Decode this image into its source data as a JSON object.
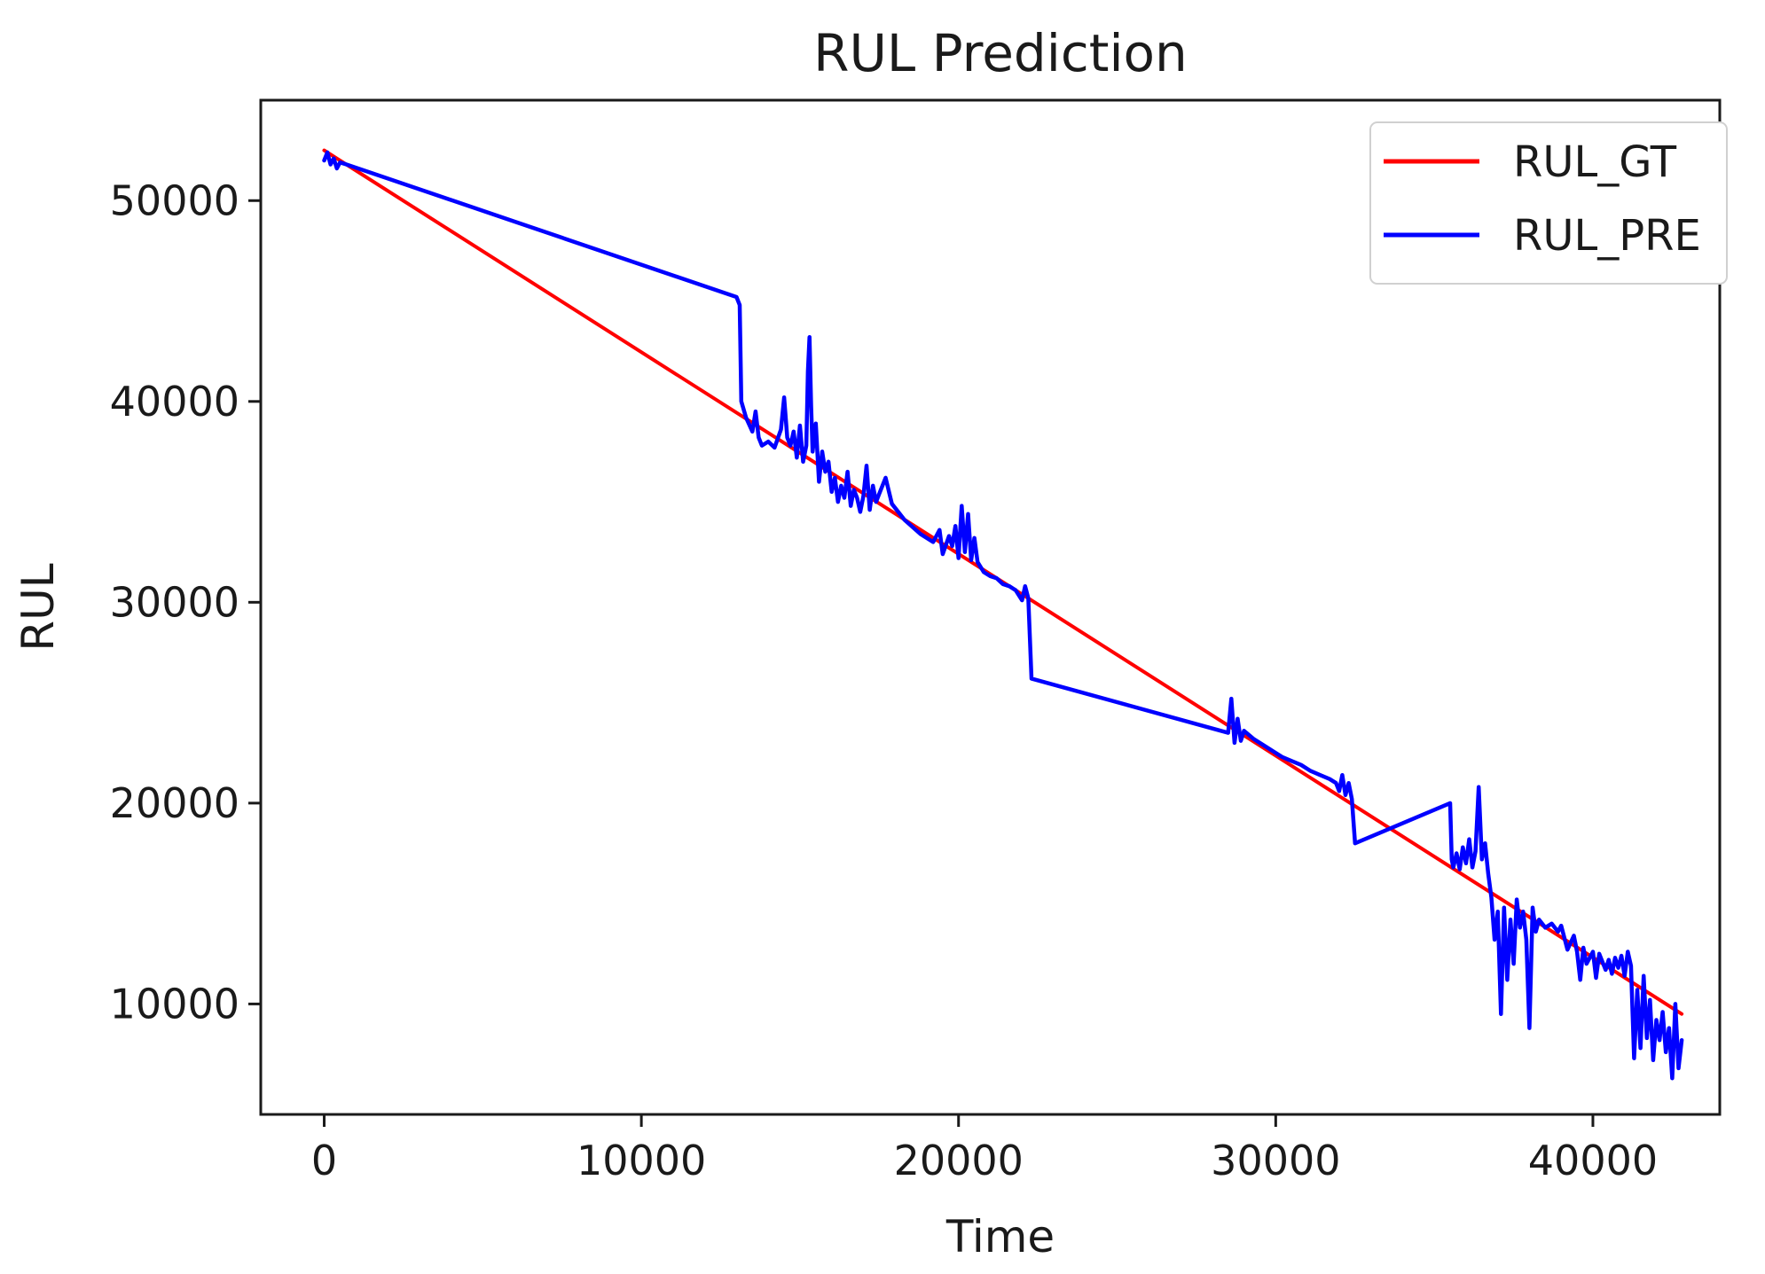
{
  "chart_data": {
    "type": "line",
    "title": "RUL Prediction",
    "xlabel": "Time",
    "ylabel": "RUL",
    "xlim": [
      -2000,
      44000
    ],
    "ylim": [
      4500,
      55000
    ],
    "x_ticks": [
      0,
      10000,
      20000,
      30000,
      40000
    ],
    "y_ticks": [
      10000,
      20000,
      30000,
      40000,
      50000
    ],
    "x_tick_labels": [
      "0",
      "10000",
      "20000",
      "30000",
      "40000"
    ],
    "y_tick_labels": [
      "10000",
      "20000",
      "30000",
      "40000",
      "50000"
    ],
    "grid": false,
    "legend_position": "top-right",
    "colors": {
      "gt": "#ff0000",
      "pre": "#0000ff"
    },
    "series": [
      {
        "name": "RUL_GT",
        "color": "#ff0000",
        "points": [
          [
            0,
            52500
          ],
          [
            42800,
            9500
          ]
        ]
      },
      {
        "name": "RUL_PRE",
        "color": "#0000ff",
        "points": [
          [
            0,
            52000
          ],
          [
            100,
            52400
          ],
          [
            200,
            51800
          ],
          [
            300,
            52100
          ],
          [
            400,
            51600
          ],
          [
            500,
            51900
          ],
          [
            700,
            51800
          ],
          [
            13000,
            45200
          ],
          [
            13100,
            44800
          ],
          [
            13150,
            40000
          ],
          [
            13300,
            39200
          ],
          [
            13500,
            38500
          ],
          [
            13600,
            39500
          ],
          [
            13700,
            38200
          ],
          [
            13800,
            37800
          ],
          [
            14000,
            38000
          ],
          [
            14200,
            37700
          ],
          [
            14400,
            38600
          ],
          [
            14500,
            40200
          ],
          [
            14600,
            38200
          ],
          [
            14700,
            37800
          ],
          [
            14800,
            38500
          ],
          [
            14900,
            37200
          ],
          [
            15000,
            38800
          ],
          [
            15100,
            37000
          ],
          [
            15200,
            37800
          ],
          [
            15250,
            41500
          ],
          [
            15300,
            43200
          ],
          [
            15350,
            39800
          ],
          [
            15400,
            37500
          ],
          [
            15500,
            38900
          ],
          [
            15600,
            36000
          ],
          [
            15700,
            37500
          ],
          [
            15800,
            36500
          ],
          [
            15900,
            37000
          ],
          [
            16000,
            35500
          ],
          [
            16100,
            36200
          ],
          [
            16200,
            35000
          ],
          [
            16300,
            35800
          ],
          [
            16400,
            35200
          ],
          [
            16500,
            36500
          ],
          [
            16600,
            34800
          ],
          [
            16700,
            35600
          ],
          [
            16800,
            35200
          ],
          [
            16900,
            34500
          ],
          [
            17000,
            35300
          ],
          [
            17100,
            36800
          ],
          [
            17200,
            34600
          ],
          [
            17300,
            35800
          ],
          [
            17400,
            35000
          ],
          [
            17500,
            35400
          ],
          [
            17700,
            36200
          ],
          [
            17900,
            34900
          ],
          [
            18300,
            34100
          ],
          [
            18800,
            33400
          ],
          [
            19200,
            33000
          ],
          [
            19400,
            33600
          ],
          [
            19500,
            32400
          ],
          [
            19700,
            33300
          ],
          [
            19800,
            32800
          ],
          [
            19900,
            33800
          ],
          [
            20000,
            32200
          ],
          [
            20100,
            34800
          ],
          [
            20200,
            32500
          ],
          [
            20300,
            34400
          ],
          [
            20400,
            32100
          ],
          [
            20500,
            33200
          ],
          [
            20600,
            32000
          ],
          [
            20800,
            31500
          ],
          [
            21000,
            31300
          ],
          [
            21200,
            31200
          ],
          [
            21400,
            30900
          ],
          [
            21600,
            30800
          ],
          [
            21800,
            30600
          ],
          [
            22000,
            30100
          ],
          [
            22100,
            30800
          ],
          [
            22200,
            30200
          ],
          [
            22300,
            26200
          ],
          [
            28500,
            23500
          ],
          [
            28600,
            25200
          ],
          [
            28700,
            23000
          ],
          [
            28800,
            24200
          ],
          [
            28900,
            23100
          ],
          [
            29000,
            23600
          ],
          [
            29300,
            23200
          ],
          [
            29600,
            22900
          ],
          [
            29900,
            22600
          ],
          [
            30200,
            22300
          ],
          [
            30500,
            22100
          ],
          [
            30800,
            21900
          ],
          [
            31100,
            21600
          ],
          [
            31400,
            21400
          ],
          [
            31700,
            21200
          ],
          [
            31900,
            21000
          ],
          [
            32000,
            20600
          ],
          [
            32100,
            21400
          ],
          [
            32200,
            20400
          ],
          [
            32300,
            21000
          ],
          [
            32400,
            20200
          ],
          [
            32500,
            18000
          ],
          [
            35500,
            20000
          ],
          [
            35550,
            17200
          ],
          [
            35600,
            16800
          ],
          [
            35700,
            17500
          ],
          [
            35800,
            16700
          ],
          [
            35900,
            17800
          ],
          [
            36000,
            17000
          ],
          [
            36100,
            18200
          ],
          [
            36200,
            16800
          ],
          [
            36300,
            17600
          ],
          [
            36400,
            20800
          ],
          [
            36500,
            17200
          ],
          [
            36600,
            18000
          ],
          [
            36700,
            16500
          ],
          [
            36800,
            15300
          ],
          [
            36900,
            13200
          ],
          [
            37000,
            14600
          ],
          [
            37100,
            9500
          ],
          [
            37200,
            14800
          ],
          [
            37300,
            11200
          ],
          [
            37400,
            14200
          ],
          [
            37500,
            12000
          ],
          [
            37600,
            15200
          ],
          [
            37700,
            13800
          ],
          [
            37800,
            14600
          ],
          [
            37900,
            13200
          ],
          [
            38000,
            8800
          ],
          [
            38100,
            14800
          ],
          [
            38200,
            13600
          ],
          [
            38300,
            14200
          ],
          [
            38500,
            13800
          ],
          [
            38700,
            14000
          ],
          [
            38900,
            13600
          ],
          [
            39000,
            13900
          ],
          [
            39200,
            12700
          ],
          [
            39400,
            13400
          ],
          [
            39500,
            12600
          ],
          [
            39600,
            11200
          ],
          [
            39700,
            12800
          ],
          [
            39800,
            12000
          ],
          [
            40000,
            12600
          ],
          [
            40100,
            11300
          ],
          [
            40200,
            12500
          ],
          [
            40400,
            11700
          ],
          [
            40500,
            12200
          ],
          [
            40600,
            11500
          ],
          [
            40700,
            12300
          ],
          [
            40800,
            11800
          ],
          [
            40900,
            12400
          ],
          [
            41000,
            11400
          ],
          [
            41100,
            12600
          ],
          [
            41200,
            11900
          ],
          [
            41300,
            7300
          ],
          [
            41400,
            10700
          ],
          [
            41500,
            7800
          ],
          [
            41600,
            11400
          ],
          [
            41700,
            8300
          ],
          [
            41800,
            10200
          ],
          [
            41900,
            7200
          ],
          [
            42000,
            9200
          ],
          [
            42100,
            8200
          ],
          [
            42200,
            9600
          ],
          [
            42300,
            7600
          ],
          [
            42400,
            8800
          ],
          [
            42500,
            6300
          ],
          [
            42600,
            10000
          ],
          [
            42700,
            6800
          ],
          [
            42800,
            8200
          ]
        ]
      }
    ]
  }
}
